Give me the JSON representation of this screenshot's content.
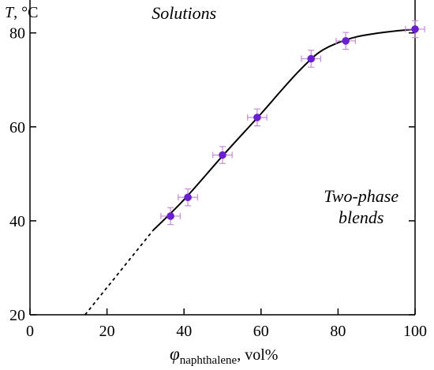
{
  "chart_data": {
    "type": "scatter",
    "ylabel_symbol": "T",
    "ylabel_unit": ", °C",
    "xlabel_symbol": "φ",
    "xlabel_subscript": "naphthalene",
    "xlabel_unit": ", vol%",
    "xlim": [
      0,
      100
    ],
    "ylim": [
      20,
      87
    ],
    "xticks": [
      0,
      20,
      40,
      60,
      80,
      100
    ],
    "yticks": [
      20,
      40,
      60,
      80
    ],
    "grid": false,
    "series": [
      {
        "points": [
          {
            "x": 36.5,
            "y": 41.0,
            "xerr": 2.5,
            "yerr": 1.8
          },
          {
            "x": 41.0,
            "y": 45.0,
            "xerr": 2.5,
            "yerr": 1.8
          },
          {
            "x": 50.0,
            "y": 54.0,
            "xerr": 2.5,
            "yerr": 1.8
          },
          {
            "x": 59.0,
            "y": 62.0,
            "xerr": 2.5,
            "yerr": 1.8
          },
          {
            "x": 73.0,
            "y": 74.5,
            "xerr": 2.5,
            "yerr": 1.8
          },
          {
            "x": 82.0,
            "y": 78.3,
            "xerr": 2.5,
            "yerr": 1.8
          },
          {
            "x": 100.0,
            "y": 80.8,
            "xerr": 2.5,
            "yerr": 1.8
          }
        ],
        "color": "#6a1fd0"
      }
    ],
    "fit_curve": [
      [
        32,
        38.0
      ],
      [
        40,
        44.5
      ],
      [
        50,
        53.8
      ],
      [
        60,
        62.8
      ],
      [
        65,
        67.5
      ],
      [
        70,
        72.0
      ],
      [
        75,
        75.8
      ],
      [
        80,
        77.9
      ],
      [
        85,
        79.2
      ],
      [
        90,
        79.9
      ],
      [
        95,
        80.4
      ],
      [
        100,
        80.8
      ]
    ],
    "extrapolation": [
      [
        14.3,
        20.0
      ],
      [
        32,
        38.0
      ]
    ],
    "annotations": [
      {
        "text": "Solutions",
        "x": 40,
        "y": 83
      },
      {
        "text": "Two-phase",
        "x": 86,
        "y": 44
      },
      {
        "text": "blends",
        "x": 86,
        "y": 39.5
      }
    ],
    "colors": {
      "points": "#6a1fd0",
      "errorbars": "#c88ad8",
      "line": "#000000"
    }
  }
}
